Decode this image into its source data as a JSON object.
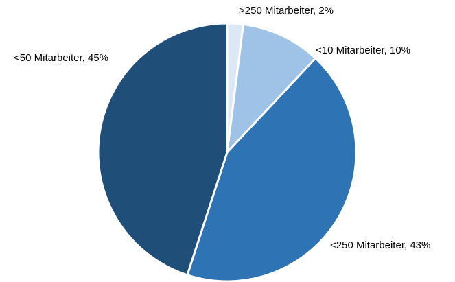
{
  "chart_data": {
    "type": "pie",
    "title": "",
    "slices": [
      {
        "label": ">250 Mitarbeiter, 2%",
        "category": ">250 Mitarbeiter",
        "value": 2,
        "color": "#dce8f6"
      },
      {
        "label": "<10 Mitarbeiter, 10%",
        "category": "<10 Mitarbeiter",
        "value": 10,
        "color": "#9fc3e7"
      },
      {
        "label": "<250 Mitarbeiter, 43%",
        "category": "<250 Mitarbeiter",
        "value": 43,
        "color": "#2e74b5"
      },
      {
        "label": "<50 Mitarbeiter, 45%",
        "category": "<50 Mitarbeiter",
        "value": 45,
        "color": "#1f4e79"
      }
    ],
    "start_angle": "12 o'clock",
    "direction": "clockwise",
    "legend": "none"
  }
}
